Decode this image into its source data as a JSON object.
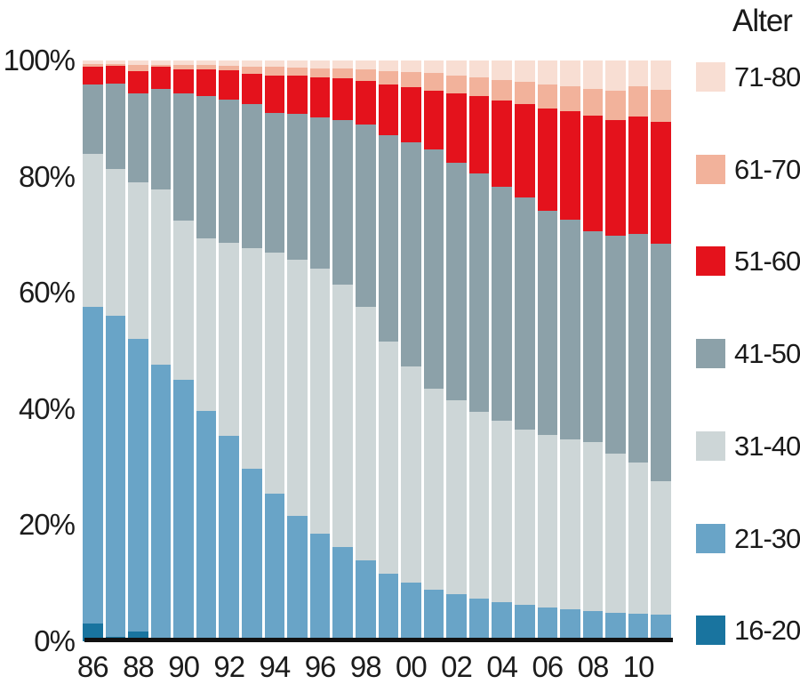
{
  "chart_data": {
    "type": "bar",
    "subtype": "stacked-100-percent",
    "title": "",
    "xlabel": "",
    "ylabel": "",
    "ylim": [
      0,
      100
    ],
    "grid": false,
    "legend_position": "right",
    "legend_title": "Alter",
    "categories": [
      "86",
      "87",
      "88",
      "89",
      "90",
      "91",
      "92",
      "93",
      "94",
      "95",
      "96",
      "97",
      "98",
      "99",
      "00",
      "01",
      "02",
      "03",
      "04",
      "05",
      "06",
      "07",
      "08",
      "09",
      "10",
      "11"
    ],
    "x_tick_labels": [
      "86",
      "88",
      "90",
      "92",
      "94",
      "96",
      "98",
      "00",
      "02",
      "04",
      "06",
      "08",
      "10"
    ],
    "y_tick_labels": [
      "100%",
      "80%",
      "60%",
      "40%",
      "20%",
      "0%"
    ],
    "y_tick_values": [
      100,
      80,
      60,
      40,
      20,
      0
    ],
    "series": [
      {
        "name": "16-20",
        "color": "#19749f",
        "values": [
          3.1,
          0.8,
          1.7,
          0.4,
          0.3,
          0.2,
          0.2,
          0.1,
          0.1,
          0.1,
          0.1,
          0.1,
          0.1,
          0.1,
          0.1,
          0.1,
          0.1,
          0.1,
          0.1,
          0.1,
          0.1,
          0.1,
          0.1,
          0.1,
          0.1,
          0.1
        ]
      },
      {
        "name": "21-30",
        "color": "#69a4c7",
        "values": [
          54.5,
          55.2,
          50.3,
          47.2,
          44.7,
          39.5,
          35.2,
          29.6,
          25.3,
          21.5,
          18.4,
          16.1,
          13.8,
          11.5,
          10.0,
          8.8,
          8.0,
          7.3,
          6.6,
          6.2,
          5.7,
          5.4,
          5.1,
          4.8,
          4.6,
          4.5
        ]
      },
      {
        "name": "31-40",
        "color": "#cdd6d7",
        "values": [
          26.4,
          25.3,
          27.0,
          30.2,
          27.4,
          29.7,
          33.2,
          38.0,
          41.5,
          44.1,
          45.7,
          45.2,
          43.7,
          40.0,
          37.2,
          34.6,
          33.4,
          32.1,
          31.3,
          30.2,
          29.7,
          29.3,
          29.1,
          27.4,
          26.1,
          22.9
        ]
      },
      {
        "name": "41-50",
        "color": "#8ca1a9",
        "values": [
          11.9,
          14.7,
          15.3,
          17.3,
          21.9,
          24.5,
          24.7,
          24.8,
          24.1,
          25.1,
          26.0,
          28.3,
          31.4,
          35.5,
          38.6,
          41.2,
          40.9,
          41.1,
          40.3,
          39.9,
          38.6,
          37.8,
          36.3,
          37.5,
          39.4,
          41.0
        ]
      },
      {
        "name": "51-60",
        "color": "#e4121c",
        "values": [
          3.0,
          3.1,
          3.9,
          3.8,
          4.2,
          4.6,
          5.0,
          5.2,
          6.4,
          6.6,
          6.9,
          7.2,
          7.5,
          8.8,
          9.5,
          10.1,
          11.9,
          13.3,
          14.8,
          16.1,
          17.6,
          18.7,
          19.9,
          20.0,
          20.1,
          21.0
        ]
      },
      {
        "name": "61-70",
        "color": "#f2b29b",
        "values": [
          0.5,
          0.3,
          1.0,
          0.4,
          0.7,
          0.7,
          0.8,
          1.3,
          1.5,
          1.4,
          1.6,
          1.7,
          2.0,
          2.3,
          2.6,
          3.0,
          3.1,
          3.2,
          3.6,
          3.8,
          4.2,
          4.2,
          4.6,
          5.0,
          5.2,
          5.5
        ]
      },
      {
        "name": "71-80",
        "color": "#f8ded3",
        "values": [
          0.6,
          0.6,
          0.8,
          0.7,
          0.8,
          0.8,
          0.9,
          1.0,
          1.1,
          1.2,
          1.3,
          1.4,
          1.5,
          1.8,
          2.0,
          2.2,
          2.6,
          2.9,
          3.3,
          3.7,
          4.1,
          4.5,
          4.9,
          5.2,
          4.5,
          5.0
        ]
      }
    ],
    "legend_order_top_to_bottom": [
      "71-80",
      "61-70",
      "51-60",
      "41-50",
      "31-40",
      "21-30",
      "16-20"
    ],
    "axis_color": "#111111",
    "tick_label_color": "#1c1c1c"
  }
}
